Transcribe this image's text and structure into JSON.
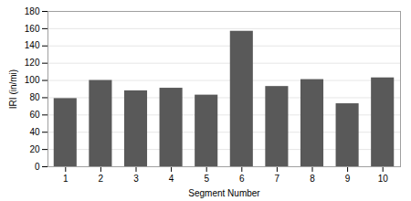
{
  "chart_data": {
    "type": "bar",
    "x": [
      1,
      2,
      3,
      4,
      5,
      6,
      7,
      8,
      9,
      10
    ],
    "values": [
      79,
      100,
      88,
      91,
      83,
      157,
      93,
      101,
      73,
      103
    ],
    "color": "#595959",
    "xlabel": "Segment Number",
    "ylabel": "IRI (in/mi)",
    "xlim": [
      0.5,
      10.5
    ],
    "xticks": [
      1,
      2,
      3,
      4,
      5,
      6,
      7,
      8,
      9,
      10
    ],
    "ylim": [
      0,
      180
    ],
    "yticks": [
      0,
      20,
      40,
      60,
      80,
      100,
      120,
      140,
      160,
      180
    ],
    "grid": true
  }
}
